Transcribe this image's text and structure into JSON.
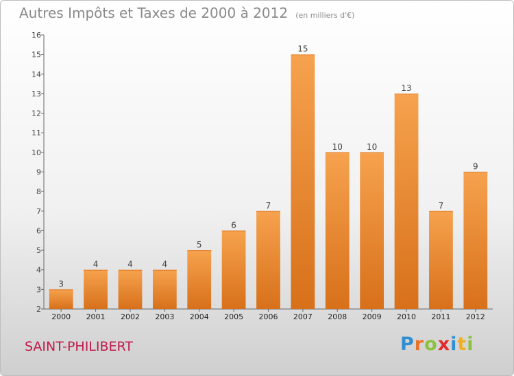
{
  "title": "Autres Impôts et Taxes de 2000 à 2012",
  "unit": "(en milliers d'€)",
  "location": "SAINT-PHILIBERT",
  "logo": {
    "letters": [
      "P",
      "r",
      "o",
      "x",
      "i",
      "t",
      "i"
    ],
    "colors": [
      "#2f8fd0",
      "#e8742a",
      "#8cc23f",
      "#e32b2b",
      "#2f8fd0",
      "#f0b020",
      "#8cc23f"
    ]
  },
  "chart_data": {
    "type": "bar",
    "categories": [
      "2000",
      "2001",
      "2002",
      "2003",
      "2004",
      "2005",
      "2006",
      "2007",
      "2008",
      "2009",
      "2010",
      "2011",
      "2012"
    ],
    "values": [
      3,
      4,
      4,
      4,
      5,
      6,
      7,
      15,
      10,
      10,
      13,
      7,
      9
    ],
    "ylim": [
      2,
      16
    ],
    "yticks": [
      2,
      3,
      4,
      5,
      6,
      7,
      8,
      9,
      10,
      11,
      12,
      13,
      14,
      15,
      16
    ],
    "bar_color": "#f0943a",
    "grid": false,
    "legend": "none"
  }
}
